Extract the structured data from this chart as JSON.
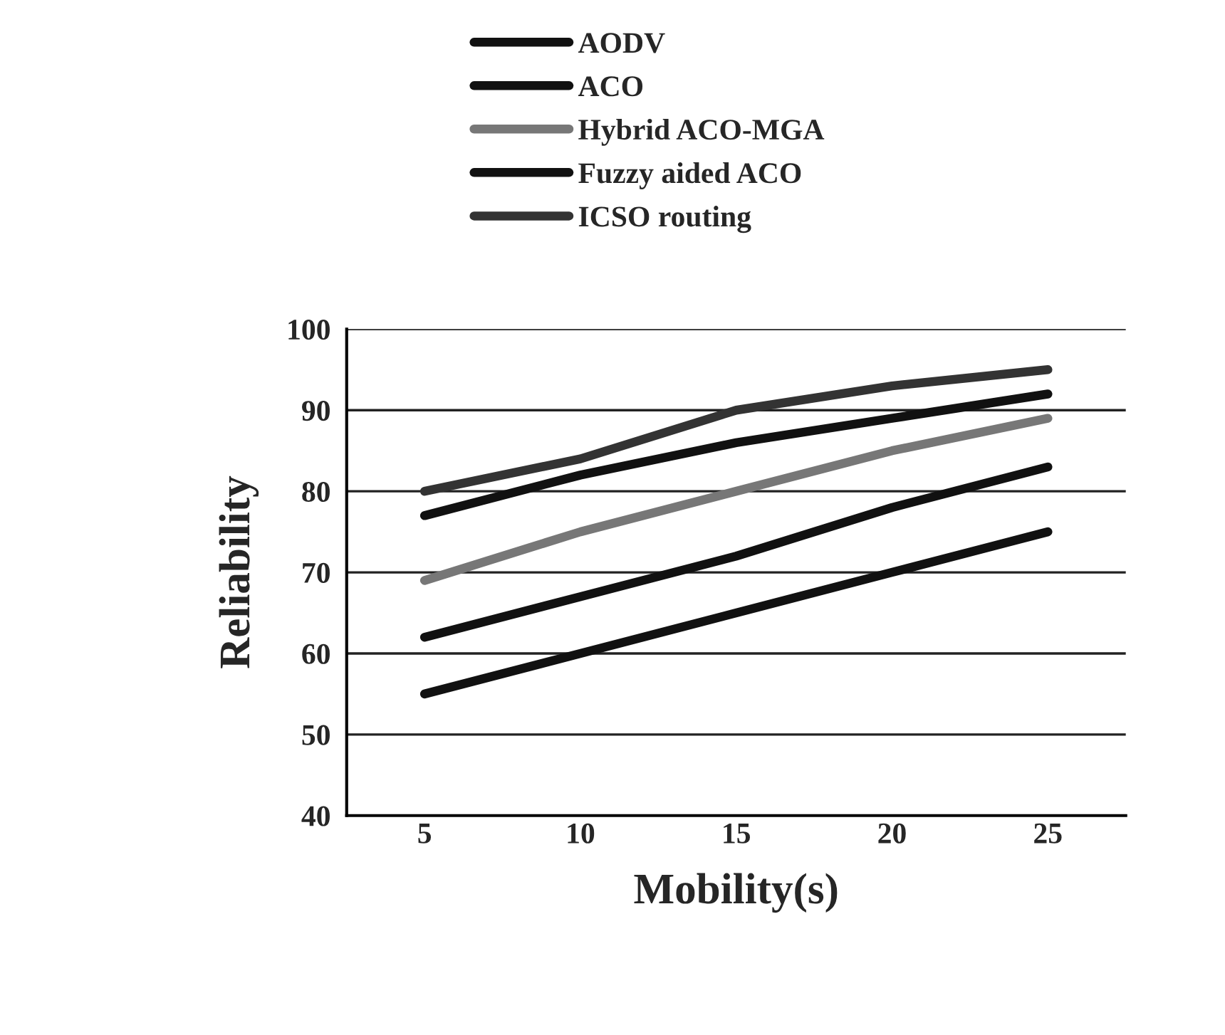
{
  "chart_data": {
    "type": "line",
    "xlabel": "Mobility(s)",
    "ylabel": "Reliability",
    "categories": [
      "5",
      "10",
      "15",
      "20",
      "25"
    ],
    "series": [
      {
        "name": "AODV",
        "color": "#111111",
        "values": [
          55,
          60,
          65,
          70,
          75
        ]
      },
      {
        "name": "ACO",
        "color": "#111111",
        "values": [
          62,
          67,
          72,
          78,
          83
        ]
      },
      {
        "name": "Hybrid ACO-MGA",
        "color": "#777777",
        "values": [
          69,
          75,
          80,
          85,
          89
        ]
      },
      {
        "name": "Fuzzy aided ACO",
        "color": "#111111",
        "values": [
          77,
          82,
          86,
          89,
          92
        ]
      },
      {
        "name": "ICSO routing",
        "color": "#333333",
        "values": [
          80,
          84,
          90,
          93,
          95
        ]
      }
    ],
    "ylim": [
      40,
      100
    ],
    "yticks": [
      40,
      50,
      60,
      70,
      80,
      90,
      100
    ],
    "grid": "y",
    "legend": "top",
    "marker": "none",
    "line_style": "solid"
  }
}
